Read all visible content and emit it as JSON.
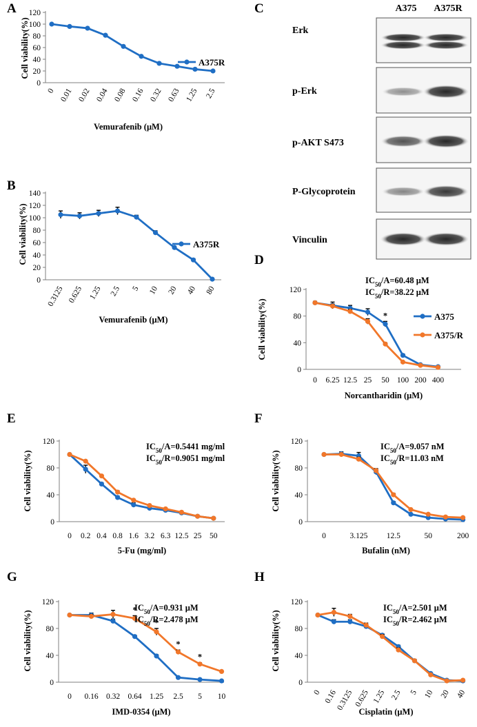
{
  "colors": {
    "blue": "#1f6ec4",
    "orange": "#f1772a",
    "axis": "#7f7f7f",
    "text": "#000000"
  },
  "blots": {
    "panel_label": "C",
    "columns": [
      "A375",
      "A375R"
    ],
    "rows": [
      {
        "label": "Erk",
        "bands": [
          0.95,
          0.95
        ],
        "double": true
      },
      {
        "label": "p-Erk",
        "bands": [
          0.35,
          0.95
        ],
        "double": false
      },
      {
        "label": "p-AKT S473",
        "bands": [
          0.7,
          0.95
        ],
        "double": false
      },
      {
        "label": "P-Glycoprotein",
        "bands": [
          0.4,
          0.85
        ],
        "double": false
      },
      {
        "label": "Vinculin",
        "bands": [
          0.95,
          0.95
        ],
        "double": false
      }
    ]
  },
  "chart_data": [
    {
      "id": "A",
      "panel_label": "A",
      "type": "line",
      "title": "",
      "xlabel": "Vemurafenib  (μM)",
      "ylabel": "Cell viability(%)",
      "ylim": [
        0,
        120
      ],
      "yticks": [
        0,
        20,
        40,
        60,
        80,
        100,
        120
      ],
      "categories": [
        "0",
        "0.01",
        "0.02",
        "0.04",
        "0.08",
        "0.16",
        "0.32",
        "0.63",
        "1.25",
        "2.5"
      ],
      "rotate_ticks": true,
      "annotations": [],
      "legend": "right",
      "series": [
        {
          "name": "A375R",
          "color": "#1f6ec4",
          "values": [
            100,
            96,
            93,
            81,
            62,
            45,
            33,
            28,
            23,
            20
          ],
          "errors": [
            1,
            1,
            1,
            1,
            1,
            1,
            1,
            1,
            1,
            1
          ]
        }
      ],
      "stars": []
    },
    {
      "id": "B",
      "panel_label": "B",
      "type": "line",
      "title": "",
      "xlabel": "Vemurafenib  (μM)",
      "ylabel": "Cell viability(%)",
      "ylim": [
        0,
        140
      ],
      "yticks": [
        0,
        20,
        40,
        60,
        80,
        100,
        120,
        140
      ],
      "categories": [
        "0.3125",
        "0.625",
        "1.25",
        "2.5",
        "5",
        "10",
        "20",
        "40",
        "80"
      ],
      "rotate_ticks": true,
      "annotations": [],
      "legend": "right",
      "series": [
        {
          "name": "A375R",
          "color": "#1f6ec4",
          "values": [
            105,
            103,
            107,
            111,
            101,
            76,
            52,
            32,
            1
          ],
          "errors": [
            6,
            5,
            5,
            6,
            3,
            3,
            2,
            2,
            1
          ]
        }
      ],
      "stars": []
    },
    {
      "id": "D",
      "panel_label": "D",
      "type": "line",
      "title": "",
      "xlabel": "Norcantharidin  (μM)",
      "ylabel": "Cell viability(%)",
      "ylim": [
        0,
        120
      ],
      "yticks": [
        0,
        40,
        80,
        120
      ],
      "categories": [
        "0",
        "6.25",
        "12.5",
        "25",
        "50",
        "100",
        "200",
        "400"
      ],
      "rotate_ticks": false,
      "annotations": [
        "IC50/A=60.48 μM",
        "IC50/R=38.22 μM"
      ],
      "legend": "right",
      "series": [
        {
          "name": "A375",
          "color": "#1f6ec4",
          "values": [
            100,
            96,
            92,
            86,
            68,
            21,
            7,
            4
          ],
          "errors": [
            2,
            5,
            4,
            5,
            4,
            2,
            1,
            1
          ]
        },
        {
          "name": "A375/R",
          "color": "#f1772a",
          "values": [
            100,
            95,
            87,
            72,
            38,
            11,
            6,
            3
          ],
          "errors": [
            2,
            3,
            3,
            4,
            2,
            1,
            1,
            1
          ]
        }
      ],
      "stars": [
        "",
        "",
        "",
        "",
        "*",
        "",
        "",
        ""
      ]
    },
    {
      "id": "E",
      "panel_label": "E",
      "type": "line",
      "title": "",
      "xlabel": "5-Fu (mg/ml)",
      "ylabel": "Cell viability(%)",
      "ylim": [
        0,
        120
      ],
      "yticks": [
        0,
        40,
        80,
        120
      ],
      "categories": [
        "0",
        "0.2",
        "0.4",
        "0.8",
        "1.6",
        "3.2",
        "6.3",
        "12.5",
        "25",
        "50"
      ],
      "rotate_ticks": false,
      "annotations": [
        "IC50/A=0.5441 mg/ml",
        "IC50/R=0.9051 mg/ml"
      ],
      "legend": "none",
      "series": [
        {
          "name": "A375",
          "color": "#1f6ec4",
          "values": [
            100,
            78,
            56,
            36,
            25,
            20,
            17,
            13,
            8,
            5
          ],
          "errors": [
            1,
            6,
            2,
            2,
            3,
            2,
            2,
            2,
            1,
            1
          ]
        },
        {
          "name": "A375/R",
          "color": "#f1772a",
          "values": [
            100,
            90,
            68,
            44,
            32,
            24,
            19,
            14,
            8,
            5
          ],
          "errors": [
            1,
            1,
            1,
            2,
            1,
            1,
            1,
            1,
            1,
            1
          ]
        }
      ],
      "stars": []
    },
    {
      "id": "F",
      "panel_label": "F",
      "type": "line",
      "title": "",
      "xlabel": "Bufalin (nM)",
      "ylabel": "Cell viability(%)",
      "ylim": [
        0,
        120
      ],
      "yticks": [
        0,
        40,
        80,
        120
      ],
      "categories": [
        "0",
        "",
        "3.125",
        "",
        "12.5",
        "",
        "50",
        "",
        "200"
      ],
      "rotate_ticks": false,
      "annotations": [
        "IC50/A=9.057 nM",
        "IC50/R=11.03 nM"
      ],
      "legend": "none",
      "series": [
        {
          "name": "A375",
          "color": "#1f6ec4",
          "values": [
            100,
            101,
            98,
            74,
            28,
            11,
            6,
            4,
            3
          ],
          "errors": [
            1,
            3,
            5,
            4,
            2,
            1,
            1,
            1,
            1
          ]
        },
        {
          "name": "A375/R",
          "color": "#f1772a",
          "values": [
            100,
            100,
            93,
            76,
            40,
            18,
            11,
            7,
            6
          ],
          "errors": [
            1,
            2,
            3,
            3,
            2,
            1,
            1,
            1,
            1
          ]
        }
      ],
      "stars": []
    },
    {
      "id": "G",
      "panel_label": "G",
      "type": "line",
      "title": "",
      "xlabel": "IMD-0354  (μM)",
      "ylabel": "Cell viability(%)",
      "ylim": [
        0,
        120
      ],
      "yticks": [
        0,
        40,
        80,
        120
      ],
      "categories": [
        "0",
        "0.16",
        "0.32",
        "0.64",
        "1.25",
        "2.5",
        "5",
        "10"
      ],
      "rotate_ticks": false,
      "annotations": [
        "IC50/A=0.931 μM",
        "IC50/R=2.478 μM"
      ],
      "legend": "none",
      "series": [
        {
          "name": "A375",
          "color": "#1f6ec4",
          "values": [
            100,
            100,
            91,
            68,
            39,
            7,
            4,
            2
          ],
          "errors": [
            1,
            3,
            3,
            2,
            2,
            1,
            1,
            1
          ]
        },
        {
          "name": "A375/R",
          "color": "#f1772a",
          "values": [
            100,
            98,
            101,
            95,
            75,
            45,
            27,
            16
          ],
          "errors": [
            1,
            3,
            6,
            4,
            5,
            3,
            2,
            1
          ]
        }
      ],
      "stars": [
        "",
        "",
        "",
        "*",
        "*",
        "*",
        "*",
        ""
      ]
    },
    {
      "id": "H",
      "panel_label": "H",
      "type": "line",
      "title": "",
      "xlabel": "Cisplatin (μM)",
      "ylabel": "Cell viability(%)",
      "ylim": [
        0,
        120
      ],
      "yticks": [
        0,
        40,
        80,
        120
      ],
      "categories": [
        "0",
        "0.16",
        "0.3125",
        "0.625",
        "1.25",
        "2.5",
        "5",
        "10",
        "20",
        "40"
      ],
      "rotate_ticks": true,
      "annotations": [
        "IC50/A=2.501 μM",
        "IC50/R=2.462 μM"
      ],
      "legend": "none",
      "series": [
        {
          "name": "A375",
          "color": "#1f6ec4",
          "values": [
            100,
            90,
            90,
            83,
            70,
            53,
            32,
            13,
            3,
            2
          ],
          "errors": [
            1,
            3,
            3,
            2,
            2,
            2,
            2,
            1,
            1,
            1
          ]
        },
        {
          "name": "A375/R",
          "color": "#f1772a",
          "values": [
            100,
            104,
            98,
            85,
            68,
            48,
            32,
            11,
            2,
            3
          ],
          "errors": [
            1,
            6,
            3,
            3,
            3,
            3,
            2,
            1,
            1,
            1
          ]
        }
      ],
      "stars": []
    }
  ]
}
